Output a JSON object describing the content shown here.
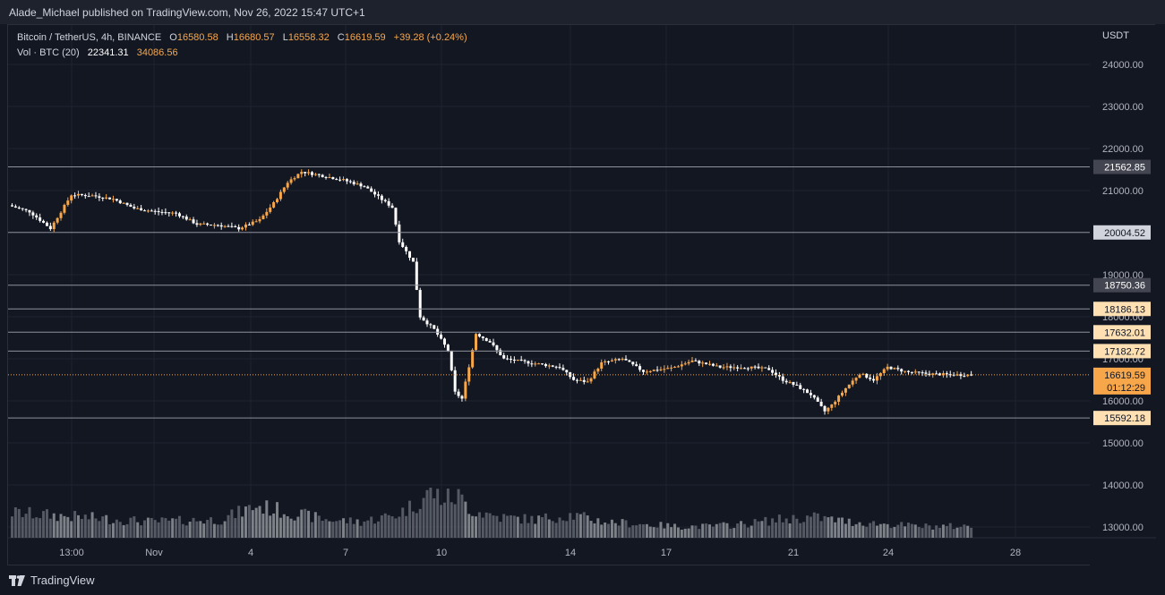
{
  "header": {
    "publisher_line": "Alade_Michael published on TradingView.com, Nov 26, 2022 15:47 UTC+1"
  },
  "legend": {
    "symbol": "Bitcoin / TetherUS, 4h, BINANCE",
    "open_label": "O",
    "open": "16580.58",
    "high_label": "H",
    "high": "16680.57",
    "low_label": "L",
    "low": "16558.32",
    "close_label": "C",
    "close": "16619.59",
    "change": "+39.28 (+0.24%)",
    "vol_label": "Vol · BTC (20)",
    "vol_ma": "22341.31",
    "vol_value": "34086.56"
  },
  "axis": {
    "currency": "USDT"
  },
  "footer": {
    "brand": "TradingView"
  },
  "colors": {
    "background": "#131722",
    "up": "#f7a74a",
    "down": "#ffffff",
    "grid": "#1f2330",
    "level_line": "#8e919a",
    "price_line": "#f7a74a"
  },
  "chart_data": {
    "type": "candlestick",
    "title": "Bitcoin / TetherUS, 4h, BINANCE",
    "ylabel": "USDT",
    "ylim": [
      12800,
      25000
    ],
    "y_ticks": [
      13000,
      14000,
      15000,
      16000,
      17000,
      18000,
      19000,
      20000,
      21000,
      22000,
      23000,
      24000
    ],
    "x_ticks": [
      "13:00",
      "Nov",
      "4",
      "7",
      "10",
      "14",
      "17",
      "21",
      "24",
      "28"
    ],
    "level_lines": [
      {
        "value": 21562.85,
        "label": "21562.85",
        "style": "dark"
      },
      {
        "value": 20004.52,
        "label": "20004.52",
        "style": "light"
      },
      {
        "value": 18750.36,
        "label": "18750.36",
        "style": "dark"
      },
      {
        "value": 18186.13,
        "label": "18186.13",
        "style": "peach"
      },
      {
        "value": 17632.01,
        "label": "17632.01",
        "style": "peach"
      },
      {
        "value": 17182.72,
        "label": "17182.72",
        "style": "peach"
      },
      {
        "value": 15592.18,
        "label": "15592.18",
        "style": "peach"
      }
    ],
    "last_price": {
      "value": 16619.59,
      "label": "16619.59",
      "countdown": "01:12:29"
    },
    "price_path": [
      [
        0,
        20650
      ],
      [
        6,
        20500
      ],
      [
        12,
        20100
      ],
      [
        18,
        20900
      ],
      [
        24,
        20880
      ],
      [
        30,
        20800
      ],
      [
        36,
        20580
      ],
      [
        42,
        20500
      ],
      [
        48,
        20460
      ],
      [
        54,
        20200
      ],
      [
        60,
        20180
      ],
      [
        66,
        20100
      ],
      [
        72,
        20300
      ],
      [
        76,
        20700
      ],
      [
        80,
        21200
      ],
      [
        84,
        21450
      ],
      [
        90,
        21350
      ],
      [
        96,
        21250
      ],
      [
        102,
        21100
      ],
      [
        106,
        20850
      ],
      [
        110,
        20600
      ],
      [
        112,
        19800
      ],
      [
        116,
        19300
      ],
      [
        118,
        18000
      ],
      [
        122,
        17700
      ],
      [
        126,
        17200
      ],
      [
        128,
        16200
      ],
      [
        130,
        16050
      ],
      [
        134,
        17600
      ],
      [
        138,
        17400
      ],
      [
        142,
        17000
      ],
      [
        150,
        16900
      ],
      [
        158,
        16800
      ],
      [
        162,
        16500
      ],
      [
        166,
        16450
      ],
      [
        170,
        16900
      ],
      [
        176,
        17000
      ],
      [
        182,
        16700
      ],
      [
        190,
        16780
      ],
      [
        196,
        16950
      ],
      [
        204,
        16800
      ],
      [
        212,
        16800
      ],
      [
        218,
        16750
      ],
      [
        222,
        16500
      ],
      [
        226,
        16350
      ],
      [
        230,
        16150
      ],
      [
        234,
        15750
      ],
      [
        236,
        15900
      ],
      [
        240,
        16300
      ],
      [
        244,
        16650
      ],
      [
        248,
        16500
      ],
      [
        252,
        16800
      ],
      [
        258,
        16680
      ],
      [
        264,
        16640
      ],
      [
        270,
        16620
      ],
      [
        276,
        16619
      ]
    ],
    "volume_path": [
      [
        0,
        0.55
      ],
      [
        20,
        0.45
      ],
      [
        40,
        0.35
      ],
      [
        60,
        0.4
      ],
      [
        70,
        0.7
      ],
      [
        80,
        0.55
      ],
      [
        90,
        0.4
      ],
      [
        100,
        0.35
      ],
      [
        110,
        0.5
      ],
      [
        116,
        0.75
      ],
      [
        120,
        1.0
      ],
      [
        124,
        0.85
      ],
      [
        128,
        0.9
      ],
      [
        132,
        0.6
      ],
      [
        140,
        0.45
      ],
      [
        150,
        0.4
      ],
      [
        160,
        0.5
      ],
      [
        170,
        0.35
      ],
      [
        180,
        0.3
      ],
      [
        190,
        0.25
      ],
      [
        200,
        0.25
      ],
      [
        210,
        0.3
      ],
      [
        220,
        0.4
      ],
      [
        230,
        0.45
      ],
      [
        240,
        0.35
      ],
      [
        250,
        0.3
      ],
      [
        260,
        0.25
      ],
      [
        276,
        0.25
      ]
    ]
  }
}
